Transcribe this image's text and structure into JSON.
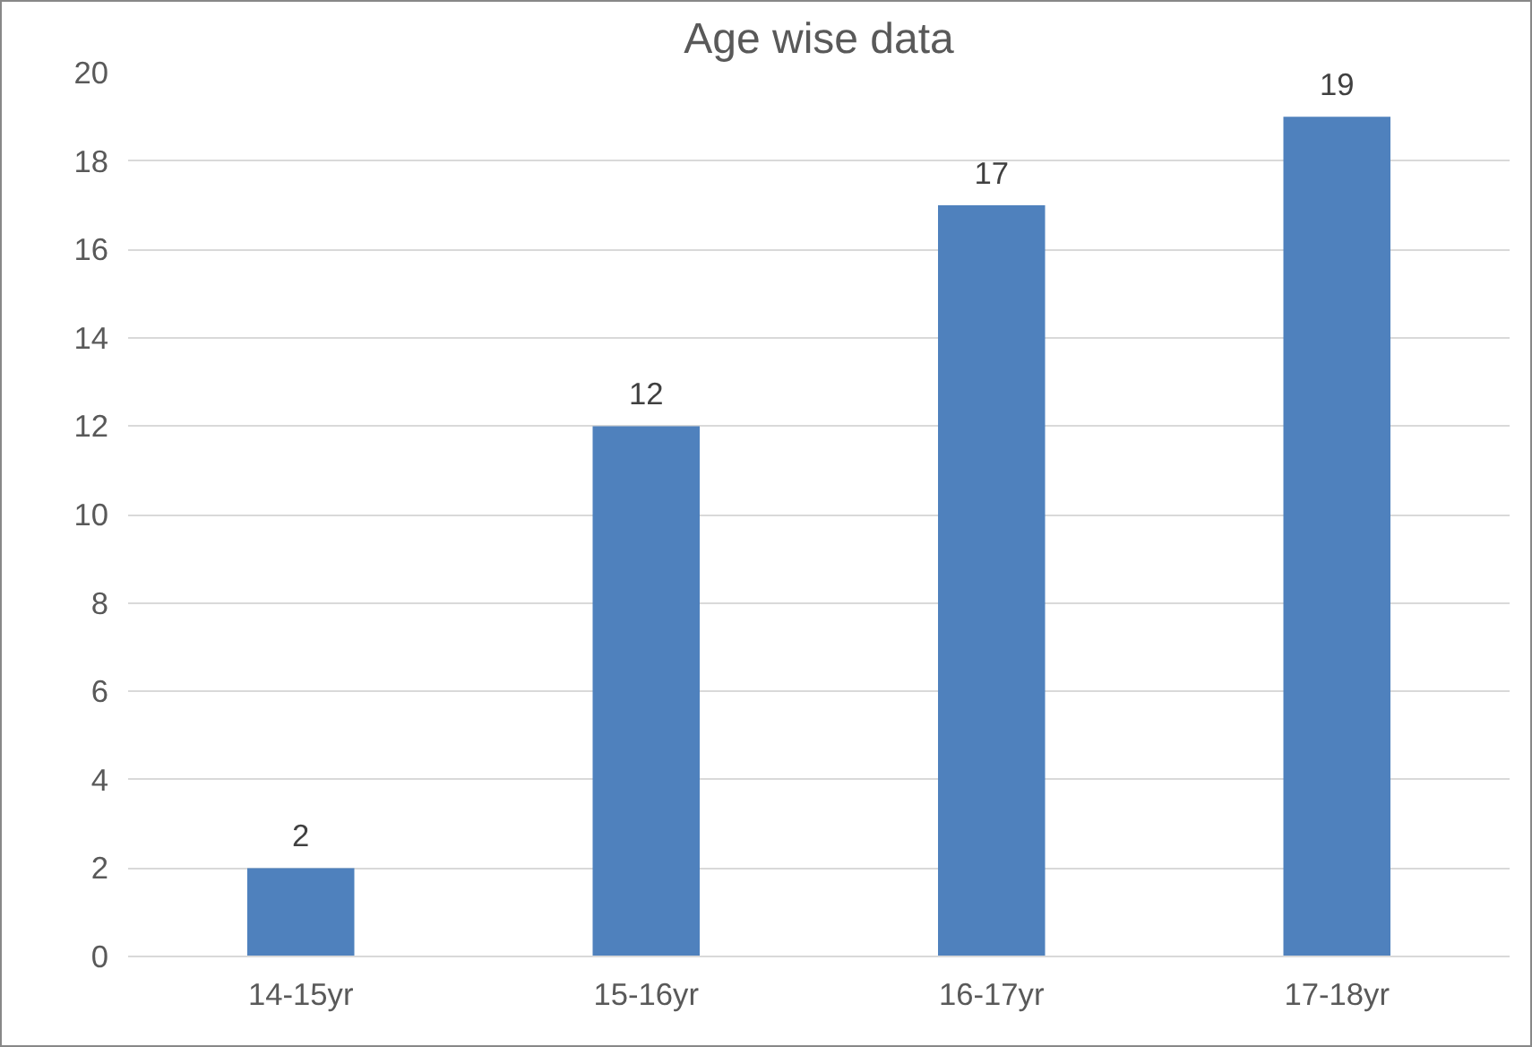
{
  "chart_data": {
    "type": "bar",
    "title": "Age wise data",
    "categories": [
      "14-15yr",
      "15-16yr",
      "16-17yr",
      "17-18yr"
    ],
    "values": [
      2,
      12,
      17,
      19
    ],
    "color": "#4f81bd",
    "ylim": [
      0,
      20
    ],
    "yticks": [
      0,
      2,
      4,
      6,
      8,
      10,
      12,
      14,
      16,
      18,
      20
    ],
    "grid": "y",
    "data_labels": true
  }
}
